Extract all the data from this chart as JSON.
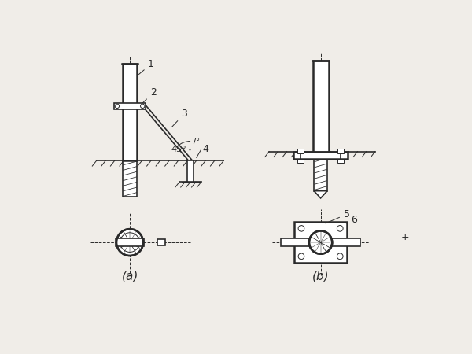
{
  "bg_color": "#f0ede8",
  "line_color": "#2a2a2a",
  "label_a": "(a)",
  "label_b": "(b)",
  "angle_45": "45°",
  "angle_7": "7°",
  "fig_width": 6.0,
  "fig_height": 4.5,
  "dpi": 100
}
